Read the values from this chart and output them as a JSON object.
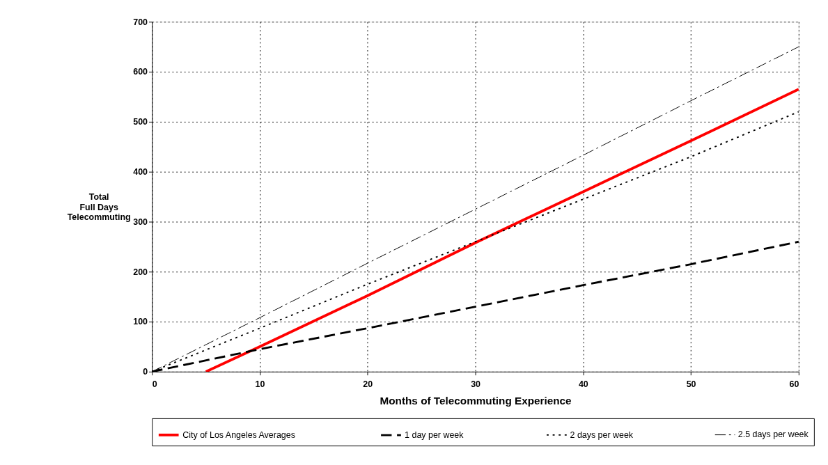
{
  "chart_data": {
    "type": "line",
    "xlabel": "Months of Telecommuting Experience",
    "ylabel": "Total Full Days Telecommuting",
    "xlim": [
      0,
      60
    ],
    "ylim": [
      0,
      700
    ],
    "xticks": [
      0,
      10,
      20,
      30,
      40,
      50,
      60
    ],
    "yticks": [
      0,
      100,
      200,
      300,
      400,
      500,
      600,
      700
    ],
    "grid": true,
    "legend": "bottom",
    "marker": "none",
    "series": [
      {
        "name": "City of Los Angeles Averages",
        "color": "#ff0000",
        "line_style": "solid",
        "x": [
          5,
          10,
          20,
          30,
          40,
          50,
          60
        ],
        "values": [
          0,
          50,
          152,
          258,
          360,
          462,
          565
        ]
      },
      {
        "name": "1 day per week",
        "color": "#000000",
        "line_style": "dashed",
        "x": [
          0,
          10,
          20,
          30,
          40,
          50,
          60
        ],
        "values": [
          0,
          45,
          87,
          130,
          173,
          215,
          260
        ]
      },
      {
        "name": "2 days per week",
        "color": "#000000",
        "line_style": "dotted",
        "x": [
          0,
          10,
          20,
          30,
          40,
          50,
          60
        ],
        "values": [
          0,
          87,
          175,
          260,
          345,
          430,
          520
        ]
      },
      {
        "name": "2.5 days per week",
        "color": "#000000",
        "line_style": "dashdot",
        "x": [
          0,
          10,
          20,
          30,
          40,
          50,
          60
        ],
        "values": [
          0,
          108,
          217,
          325,
          433,
          542,
          650
        ]
      }
    ]
  }
}
